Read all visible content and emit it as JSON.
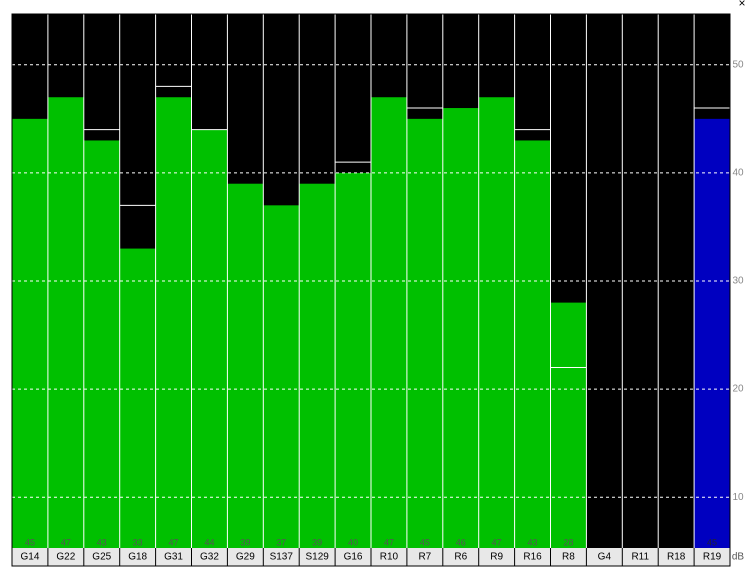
{
  "chart_data": {
    "type": "bar",
    "categories": [
      "G14",
      "G22",
      "G25",
      "G18",
      "G31",
      "G32",
      "G29",
      "S137",
      "S129",
      "G16",
      "R10",
      "R7",
      "R6",
      "R9",
      "R16",
      "R8",
      "G4",
      "R11",
      "R18",
      "R19"
    ],
    "values": [
      45,
      47,
      43,
      33,
      47,
      44,
      39,
      37,
      39,
      40,
      47,
      45,
      46,
      47,
      43,
      28,
      null,
      null,
      null,
      45
    ],
    "secondary_values": [
      null,
      null,
      44,
      37,
      48,
      44,
      null,
      null,
      null,
      41,
      null,
      46,
      null,
      null,
      44,
      22,
      null,
      null,
      null,
      46
    ],
    "colors": [
      "#00c000",
      "#00c000",
      "#00c000",
      "#00c000",
      "#00c000",
      "#00c000",
      "#00c000",
      "#00c000",
      "#00c000",
      "#00c000",
      "#00c000",
      "#00c000",
      "#00c000",
      "#00c000",
      "#00c000",
      "#00c000",
      "#00c000",
      "#00c000",
      "#00c000",
      "#0000c0"
    ],
    "ylim": [
      5.3,
      54.7
    ],
    "yticks": [
      10,
      20,
      30,
      40,
      50
    ],
    "grid": true,
    "y_unit": "dB",
    "close_label": "×"
  }
}
